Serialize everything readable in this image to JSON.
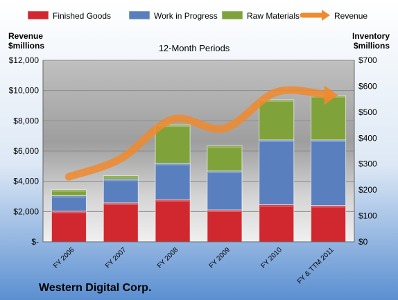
{
  "chart_data": {
    "type": "bar",
    "subtitle": "12-Month Periods",
    "company": "Western Digital Corp.",
    "categories": [
      "FY 2006",
      "FY 2007",
      "FY 2008",
      "FY 2009",
      "FY 2010",
      "FY & TTM 2011"
    ],
    "inventory_series": [
      {
        "name": "Finished Goods",
        "color": "#d0282e",
        "values": [
          118,
          150,
          163,
          123,
          143,
          140
        ]
      },
      {
        "name": "Work in Progress",
        "color": "#5a7fbe",
        "values": [
          60,
          92,
          140,
          150,
          250,
          253
        ]
      },
      {
        "name": "Raw Materials",
        "color": "#7fa33a",
        "values": [
          23,
          13,
          148,
          97,
          155,
          171
        ]
      }
    ],
    "revenue_series": {
      "name": "Revenue",
      "color": "#f08a2e",
      "values": [
        4300,
        5500,
        8100,
        7500,
        9900,
        9700
      ]
    },
    "left_axis": {
      "title_line1": "Revenue",
      "title_line2": "$millions",
      "ylim": [
        0,
        12000
      ],
      "ticks": [
        0,
        2000,
        4000,
        6000,
        8000,
        10000,
        12000
      ],
      "tick_labels": [
        "$-",
        "$2,000",
        "$4,000",
        "$6,000",
        "$8,000",
        "$10,000",
        "$12,000"
      ]
    },
    "right_axis": {
      "title_line1": "Inventory",
      "title_line2": "$millions",
      "ylim": [
        0,
        700
      ],
      "ticks": [
        0,
        100,
        200,
        300,
        400,
        500,
        600,
        700
      ],
      "tick_labels": [
        "$0",
        "$100",
        "$200",
        "$300",
        "$400",
        "$500",
        "$600",
        "$700"
      ]
    },
    "legend": {
      "placement": "top",
      "items": [
        {
          "label": "Finished Goods",
          "color": "#d0282e",
          "kind": "box"
        },
        {
          "label": "Work in Progress",
          "color": "#5a7fbe",
          "kind": "box"
        },
        {
          "label": "Raw Materials",
          "color": "#7fa33a",
          "kind": "box"
        },
        {
          "label": "Revenue",
          "color": "#f08a2e",
          "kind": "arrow"
        }
      ]
    },
    "grid": true
  }
}
